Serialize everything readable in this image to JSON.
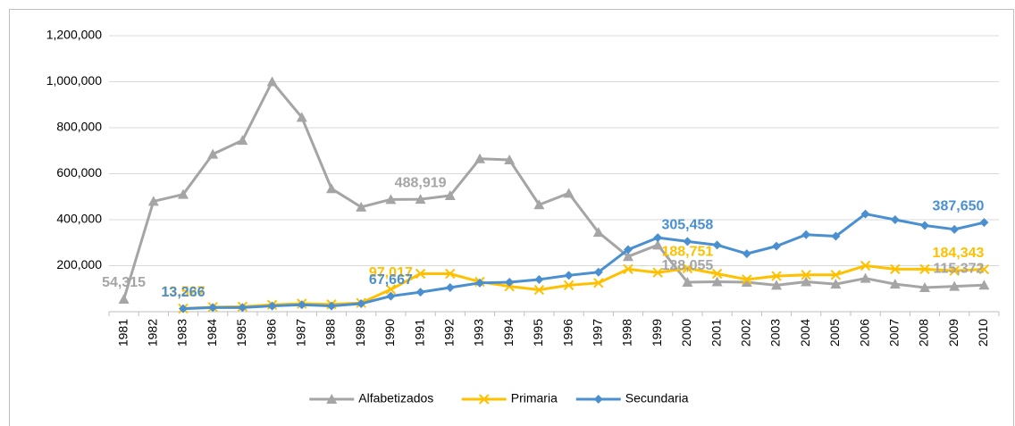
{
  "chart_data": {
    "type": "line",
    "categories": [
      "1981",
      "1982",
      "1983",
      "1984",
      "1985",
      "1986",
      "1987",
      "1988",
      "1989",
      "1990",
      "1991",
      "1992",
      "1993",
      "1994",
      "1995",
      "1996",
      "1997",
      "1998",
      "1999",
      "2000",
      "2001",
      "2002",
      "2003",
      "2004",
      "2005",
      "2006",
      "2007",
      "2008",
      "2009",
      "2010"
    ],
    "series": [
      {
        "name": "Alfabetizados",
        "color": "#a5a5a5",
        "marker": "triangle",
        "values": [
          54315,
          480000,
          510000,
          685000,
          745000,
          1000000,
          845000,
          535000,
          455000,
          488000,
          488919,
          505000,
          665000,
          660000,
          465000,
          515000,
          345000,
          240000,
          290000,
          128055,
          130000,
          128000,
          115000,
          130000,
          120000,
          145000,
          120000,
          105000,
          110000,
          115372
        ],
        "value_labels": [
          "54,315",
          null,
          null,
          null,
          null,
          null,
          null,
          null,
          null,
          null,
          "488,919",
          null,
          null,
          null,
          null,
          null,
          null,
          null,
          null,
          "128,055",
          null,
          null,
          null,
          null,
          null,
          null,
          null,
          null,
          null,
          "115,372"
        ]
      },
      {
        "name": "Primaria",
        "color": "#ffc000",
        "marker": "x",
        "values": [
          null,
          null,
          13527,
          20000,
          22000,
          30000,
          35000,
          32000,
          38000,
          97017,
          165000,
          165000,
          130000,
          110000,
          95000,
          115000,
          125000,
          185000,
          170000,
          188751,
          165000,
          140000,
          155000,
          160000,
          160000,
          200000,
          185000,
          185000,
          178000,
          184343
        ],
        "value_labels": [
          null,
          null,
          "13,527",
          null,
          null,
          null,
          null,
          null,
          null,
          "97,017",
          null,
          null,
          null,
          null,
          null,
          null,
          null,
          null,
          null,
          "188,751",
          null,
          null,
          null,
          null,
          null,
          null,
          null,
          null,
          null,
          "184,343"
        ]
      },
      {
        "name": "Secundaria",
        "color": "#4a90d0",
        "marker": "diamond",
        "values": [
          null,
          null,
          13266,
          18000,
          18000,
          25000,
          30000,
          25000,
          35000,
          67667,
          85000,
          105000,
          125000,
          128000,
          140000,
          158000,
          172000,
          270000,
          322000,
          305458,
          290000,
          252000,
          285000,
          335000,
          328000,
          425000,
          400000,
          375000,
          358000,
          387650
        ],
        "value_labels": [
          null,
          null,
          "13,266",
          null,
          null,
          null,
          null,
          null,
          null,
          "67,667",
          null,
          null,
          null,
          null,
          null,
          null,
          null,
          null,
          null,
          "305,458",
          null,
          null,
          null,
          null,
          null,
          null,
          null,
          null,
          null,
          "387,650"
        ]
      }
    ],
    "ylim": [
      0,
      1200000
    ],
    "yticks": [
      {
        "value": 200000,
        "label": "200,000"
      },
      {
        "value": 400000,
        "label": "400,000"
      },
      {
        "value": 600000,
        "label": "600,000"
      },
      {
        "value": 800000,
        "label": "800,000"
      },
      {
        "value": 1000000,
        "label": "1,000,000"
      },
      {
        "value": 1200000,
        "label": "1,200,000"
      }
    ],
    "grid": true,
    "legend": "bottom"
  }
}
